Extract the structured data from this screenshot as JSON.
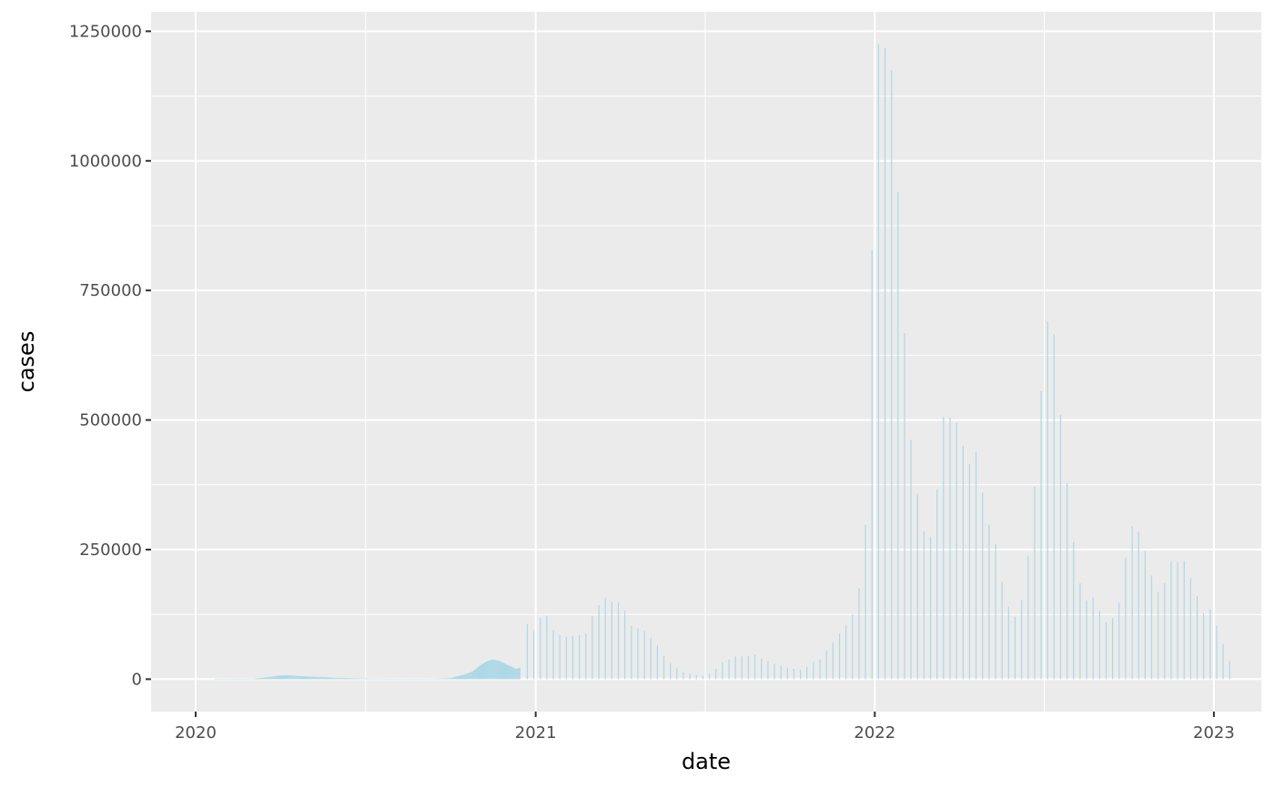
{
  "chart_data": {
    "type": "bar",
    "title": "",
    "xlabel": "date",
    "ylabel": "cases",
    "ylim": [
      -62500,
      1287500
    ],
    "xlim": [
      "2019-11-14",
      "2023-02-21"
    ],
    "y_ticks": [
      0,
      250000,
      500000,
      750000,
      1000000,
      1250000
    ],
    "y_tick_labels": [
      "0",
      "250000",
      "500000",
      "750000",
      "1000000",
      "1250000"
    ],
    "x_ticks": [
      "2020-01-01",
      "2021-01-01",
      "2022-01-01",
      "2023-01-01"
    ],
    "x_tick_labels": [
      "2020",
      "2021",
      "2022",
      "2023"
    ],
    "grid": true,
    "background": "#ebebeb",
    "grid_color": "#ffffff",
    "bar_color": "#add8e6",
    "daily": {
      "description": "daily reporting period through mid-December 2020",
      "x": [
        "2020-01-22",
        "2020-03-01",
        "2020-03-15",
        "2020-04-01",
        "2020-04-10",
        "2020-04-25",
        "2020-05-15",
        "2020-06-01",
        "2020-06-20",
        "2020-07-15",
        "2020-08-15",
        "2020-09-15",
        "2020-10-01",
        "2020-10-15",
        "2020-10-25",
        "2020-11-01",
        "2020-11-08",
        "2020-11-15",
        "2020-11-22",
        "2020-11-29",
        "2020-12-06",
        "2020-12-10",
        "2020-12-15"
      ],
      "values": [
        0,
        500,
        3000,
        7000,
        7500,
        5500,
        4000,
        2500,
        1500,
        1000,
        800,
        1000,
        2000,
        8000,
        15000,
        25000,
        33000,
        38000,
        36000,
        30000,
        24000,
        20000,
        22000
      ]
    },
    "weekly": {
      "description": "weekly reported totals from late December 2020",
      "x": [
        "2020-12-23",
        "2020-12-30",
        "2021-01-06",
        "2021-01-13",
        "2021-01-20",
        "2021-01-27",
        "2021-02-03",
        "2021-02-10",
        "2021-02-17",
        "2021-02-24",
        "2021-03-03",
        "2021-03-10",
        "2021-03-17",
        "2021-03-24",
        "2021-03-31",
        "2021-04-07",
        "2021-04-14",
        "2021-04-21",
        "2021-04-28",
        "2021-05-05",
        "2021-05-12",
        "2021-05-19",
        "2021-05-26",
        "2021-06-02",
        "2021-06-09",
        "2021-06-16",
        "2021-06-23",
        "2021-06-30",
        "2021-07-07",
        "2021-07-14",
        "2021-07-21",
        "2021-07-28",
        "2021-08-04",
        "2021-08-11",
        "2021-08-18",
        "2021-08-25",
        "2021-09-01",
        "2021-09-08",
        "2021-09-15",
        "2021-09-22",
        "2021-09-29",
        "2021-10-06",
        "2021-10-13",
        "2021-10-20",
        "2021-10-27",
        "2021-11-03",
        "2021-11-10",
        "2021-11-17",
        "2021-11-24",
        "2021-12-01",
        "2021-12-08",
        "2021-12-15",
        "2021-12-22",
        "2021-12-29",
        "2022-01-05",
        "2022-01-12",
        "2022-01-19",
        "2022-01-26",
        "2022-02-02",
        "2022-02-09",
        "2022-02-16",
        "2022-02-23",
        "2022-03-02",
        "2022-03-09",
        "2022-03-16",
        "2022-03-23",
        "2022-03-30",
        "2022-04-06",
        "2022-04-13",
        "2022-04-20",
        "2022-04-27",
        "2022-05-04",
        "2022-05-11",
        "2022-05-18",
        "2022-05-25",
        "2022-06-01",
        "2022-06-08",
        "2022-06-15",
        "2022-06-22",
        "2022-06-29",
        "2022-07-06",
        "2022-07-13",
        "2022-07-20",
        "2022-07-27",
        "2022-08-03",
        "2022-08-10",
        "2022-08-17",
        "2022-08-24",
        "2022-08-31",
        "2022-09-07",
        "2022-09-14",
        "2022-09-21",
        "2022-09-28",
        "2022-10-05",
        "2022-10-12",
        "2022-10-19",
        "2022-10-26",
        "2022-11-02",
        "2022-11-09",
        "2022-11-16",
        "2022-11-23",
        "2022-11-30",
        "2022-12-07",
        "2022-12-14",
        "2022-12-21",
        "2022-12-28",
        "2023-01-04",
        "2023-01-11",
        "2023-01-18"
      ],
      "values": [
        106000,
        93000,
        118000,
        122000,
        95000,
        85000,
        82000,
        84000,
        85000,
        88000,
        122000,
        143000,
        157000,
        150000,
        148000,
        132000,
        103000,
        98000,
        93000,
        80000,
        65000,
        45000,
        32000,
        21000,
        13000,
        10000,
        8000,
        6000,
        10000,
        20000,
        32000,
        38000,
        44000,
        44000,
        45000,
        47000,
        40000,
        35000,
        30000,
        26000,
        22000,
        20000,
        18000,
        24000,
        33000,
        38000,
        55000,
        70000,
        88000,
        105000,
        125000,
        175000,
        298000,
        828000,
        1225000,
        1218000,
        1175000,
        940000,
        668000,
        462000,
        358000,
        285000,
        275000,
        366000,
        506000,
        505000,
        495000,
        450000,
        415000,
        438000,
        360000,
        298000,
        261000,
        188000,
        140000,
        120000,
        153000,
        238000,
        372000,
        556000,
        690000,
        665000,
        510000,
        378000,
        265000,
        185000,
        152000,
        158000,
        132000,
        110000,
        118000,
        148000,
        235000,
        295000,
        285000,
        248000,
        200000,
        168000,
        185000,
        228000,
        226000,
        228000,
        195000,
        160000,
        127000,
        135000,
        103000,
        68000,
        35000
      ]
    }
  }
}
